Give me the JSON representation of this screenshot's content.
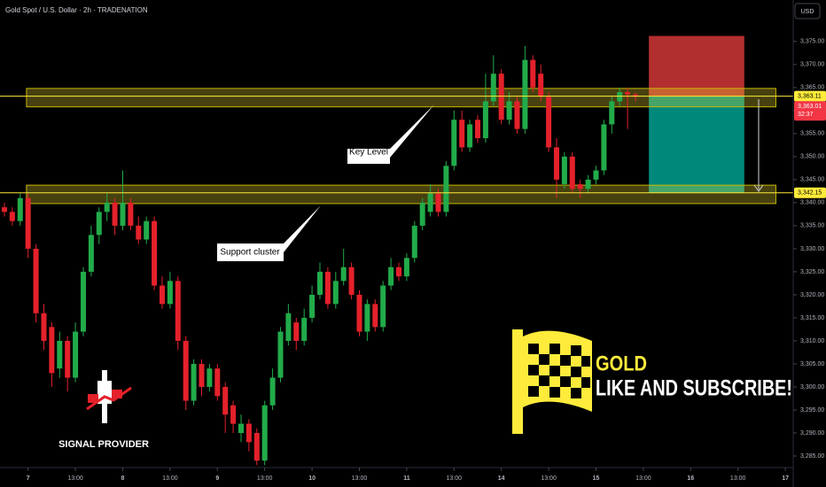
{
  "chart_data": {
    "type": "candlestick",
    "title": "Gold Spot / U.S. Dollar · 2h · TRADENATION",
    "currency": "USD",
    "x": [
      0,
      1,
      2,
      3,
      4,
      5,
      6,
      7,
      8,
      9,
      10,
      11,
      12,
      13,
      14,
      15,
      16,
      17,
      18,
      19,
      20,
      21,
      22,
      23,
      24,
      25,
      26,
      27,
      28,
      29,
      30,
      31,
      32,
      33,
      34,
      35,
      36,
      37,
      38,
      39,
      40,
      41,
      42,
      43,
      44,
      45,
      46,
      47,
      48,
      49,
      50,
      51,
      52,
      53,
      54,
      55,
      56,
      57,
      58,
      59,
      60,
      61,
      62,
      63,
      64,
      65,
      66,
      67,
      68,
      69,
      70,
      71,
      72,
      73,
      74,
      75,
      76,
      77,
      78,
      79,
      80
    ],
    "open": [
      3339,
      3338,
      3336,
      3341,
      3330,
      3316,
      3313,
      3304,
      3310,
      3302,
      3312,
      3325,
      3333,
      3338,
      3340,
      3335,
      3340,
      3335,
      3332,
      3336,
      3322,
      3318,
      3323,
      3310,
      3297,
      3305,
      3300,
      3304,
      3300,
      3296,
      3290,
      3292,
      3290,
      3284,
      3296,
      3302,
      3310,
      3314,
      3310,
      3315,
      3320,
      3325,
      3318,
      3323,
      3326,
      3320,
      3312,
      3318,
      3313,
      3322,
      3326,
      3324,
      3328,
      3335,
      3338,
      3342,
      3338,
      3348,
      3358,
      3352,
      3358,
      3354,
      3362,
      3368,
      3358,
      3362,
      3356,
      3371,
      3368,
      3363,
      3352,
      3344,
      3350,
      3344,
      3343,
      3345,
      3347,
      3357,
      3362,
      3364,
      3363.5
    ],
    "high": [
      3340,
      3339,
      3342,
      3342,
      3331,
      3318,
      3314,
      3312,
      3311,
      3314,
      3326,
      3335,
      3339,
      3342,
      3341,
      3347,
      3341,
      3337,
      3337,
      3337,
      3324,
      3325,
      3324,
      3311,
      3306,
      3306,
      3305,
      3305,
      3301,
      3297,
      3294,
      3293,
      3291,
      3297,
      3304,
      3313,
      3318,
      3315,
      3317,
      3322,
      3327,
      3326,
      3325,
      3330,
      3327,
      3321,
      3319,
      3319,
      3323,
      3328,
      3327,
      3329,
      3336,
      3341,
      3344,
      3343,
      3349,
      3360,
      3360,
      3358,
      3359,
      3368,
      3372,
      3369,
      3364,
      3363,
      3374,
      3372,
      3370,
      3364,
      3354,
      3351,
      3351,
      3345,
      3346,
      3348,
      3358,
      3363,
      3365,
      3365,
      3364
    ],
    "low": [
      3337,
      3335,
      3335,
      3328,
      3314,
      3308,
      3300,
      3302,
      3299,
      3301,
      3311,
      3324,
      3331,
      3336,
      3333,
      3334,
      3334,
      3331,
      3331,
      3321,
      3317,
      3317,
      3308,
      3295,
      3296,
      3298,
      3299,
      3297,
      3290,
      3290,
      3288,
      3286,
      3283,
      3283,
      3295,
      3301,
      3309,
      3308,
      3309,
      3314,
      3319,
      3317,
      3317,
      3322,
      3319,
      3311,
      3310,
      3312,
      3312,
      3321,
      3323,
      3323,
      3327,
      3334,
      3337,
      3337,
      3337,
      3347,
      3351,
      3351,
      3353,
      3353,
      3361,
      3357,
      3357,
      3355,
      3355,
      3364,
      3362,
      3351,
      3341,
      3343,
      3342,
      3341,
      3342,
      3344,
      3346,
      3355,
      3361,
      3356,
      3362
    ],
    "close": [
      3338,
      3336,
      3341,
      3330,
      3316,
      3310,
      3303,
      3310,
      3302,
      3312,
      3325,
      3333,
      3338,
      3340,
      3335,
      3340,
      3335,
      3332,
      3336,
      3322,
      3318,
      3323,
      3310,
      3297,
      3305,
      3300,
      3304,
      3298,
      3294,
      3292,
      3292,
      3288,
      3284,
      3296,
      3302,
      3312,
      3316,
      3310,
      3315,
      3320,
      3325,
      3318,
      3323,
      3326,
      3320,
      3312,
      3318,
      3313,
      3322,
      3326,
      3324,
      3328,
      3335,
      3340,
      3342,
      3338,
      3348,
      3358,
      3352,
      3357,
      3354,
      3362,
      3368,
      3358,
      3362,
      3356,
      3371,
      3365,
      3363,
      3352,
      3345,
      3350,
      3343,
      3343,
      3345,
      3347,
      3357,
      3362,
      3364,
      3363.5,
      3363.01
    ],
    "up_color": "#22ab4a",
    "down_color": "#e4212b",
    "xlim": [
      -0.56,
      100
    ],
    "xticks": [
      {
        "value": 3,
        "label": "7"
      },
      {
        "value": 9,
        "label": "13:00"
      },
      {
        "value": 15,
        "label": "8"
      },
      {
        "value": 21,
        "label": "13:00"
      },
      {
        "value": 27,
        "label": "9"
      },
      {
        "value": 33,
        "label": "13:00"
      },
      {
        "value": 39,
        "label": "10"
      },
      {
        "value": 45,
        "label": "13:00"
      },
      {
        "value": 51,
        "label": "11"
      },
      {
        "value": 57,
        "label": "13:00"
      },
      {
        "value": 63,
        "label": "14"
      },
      {
        "value": 69,
        "label": "13:00"
      },
      {
        "value": 75,
        "label": "15"
      },
      {
        "value": 81,
        "label": "13:00"
      },
      {
        "value": 87,
        "label": "16"
      },
      {
        "value": 93,
        "label": "13:00"
      },
      {
        "value": 99,
        "label": "17"
      }
    ],
    "ylim": [
      3282.5,
      3384
    ],
    "yticks": [
      {
        "value": 3285,
        "label": "3,285.00"
      },
      {
        "value": 3290,
        "label": "3,290.00"
      },
      {
        "value": 3295,
        "label": "3,295.00"
      },
      {
        "value": 3300,
        "label": "3,300.00"
      },
      {
        "value": 3305,
        "label": "3,305.00"
      },
      {
        "value": 3310,
        "label": "3,310.00"
      },
      {
        "value": 3315,
        "label": "3,315.00"
      },
      {
        "value": 3320,
        "label": "3,320.00"
      },
      {
        "value": 3325,
        "label": "3,325.00"
      },
      {
        "value": 3330,
        "label": "3,330.00"
      },
      {
        "value": 3335,
        "label": "3,335.00"
      },
      {
        "value": 3340,
        "label": "3,340.00"
      },
      {
        "value": 3345,
        "label": "3,345.00"
      },
      {
        "value": 3350,
        "label": "3,350.00"
      },
      {
        "value": 3355,
        "label": "3,355.00"
      },
      {
        "value": 3360,
        "label": "3,360.00"
      },
      {
        "value": 3365,
        "label": "3,365.00"
      },
      {
        "value": 3370,
        "label": "3,370.00"
      },
      {
        "value": 3375,
        "label": "3,375.00"
      }
    ],
    "zones": [
      {
        "from": 3360.8,
        "to": 3364.8,
        "x_from": 2.8,
        "x_to": 97.8
      },
      {
        "from": 3339.8,
        "to": 3343.8,
        "x_from": 2.8,
        "x_to": 97.8
      }
    ],
    "levels": [
      {
        "value": 3363.11,
        "label": "3,363.11",
        "color": "#ffeb3b"
      },
      {
        "value": 3342.15,
        "label": "3,342.15",
        "color": "#ffeb3b"
      }
    ],
    "last_price": {
      "value": 3363.01,
      "label": "3,363.01",
      "color": "#f23645"
    },
    "countdown": "32:37",
    "position": {
      "x_from": 81.7,
      "x_to": 93.8,
      "stop": 3376.2,
      "entry": 3363.11,
      "target": 3342.1,
      "stop_color": "#b22f2f",
      "target_color": "#00897b"
    },
    "annotations": [
      "Key Level",
      "Support cluster"
    ],
    "brand": "SIGNAL PROVIDER",
    "banner_title": "GOLD",
    "banner_text": "LIKE AND SUBSCRIBE!"
  }
}
